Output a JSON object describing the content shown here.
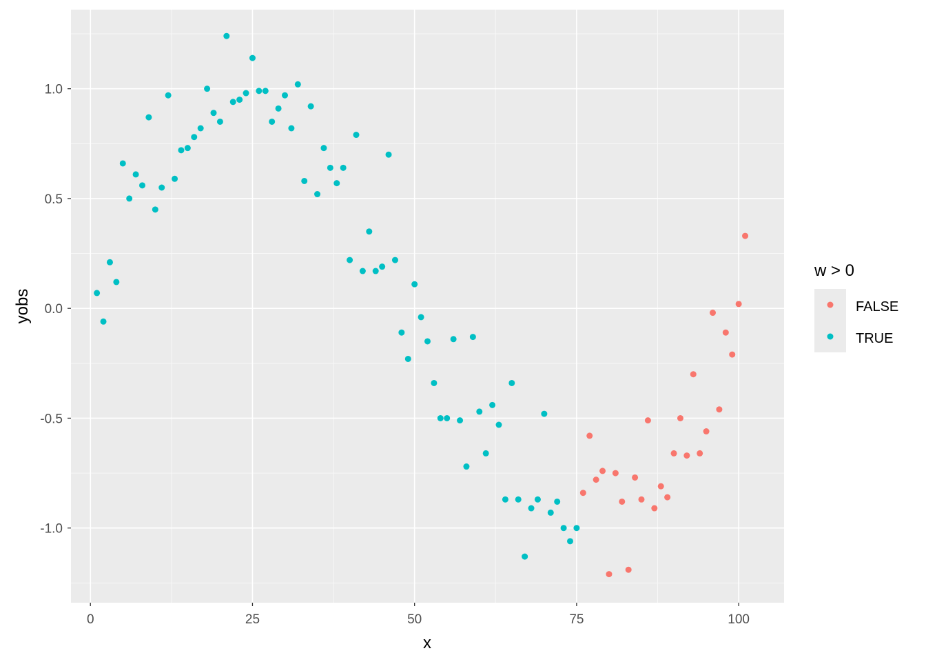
{
  "chart_data": {
    "type": "scatter",
    "xlabel": "x",
    "ylabel": "yobs",
    "xlim": [
      -3,
      107
    ],
    "ylim": [
      -1.34,
      1.36
    ],
    "x_ticks": [
      0,
      25,
      50,
      75,
      100
    ],
    "x_tick_labels": [
      "0",
      "25",
      "50",
      "75",
      "100"
    ],
    "y_ticks": [
      -1.0,
      -0.5,
      0.0,
      0.5,
      1.0
    ],
    "y_tick_labels": [
      "-1.0",
      "-0.5",
      "0.0",
      "0.5",
      "1.0"
    ],
    "grid": true,
    "legend": {
      "title": "w > 0",
      "position": "right",
      "entries": [
        {
          "label": "FALSE",
          "color": "#F8766D"
        },
        {
          "label": "TRUE",
          "color": "#00BFC4"
        }
      ]
    },
    "series": [
      {
        "name": "FALSE",
        "color": "#F8766D",
        "x": [
          76,
          77,
          78,
          79,
          80,
          81,
          82,
          83,
          84,
          85,
          86,
          87,
          88,
          89,
          90,
          91,
          92,
          93,
          94,
          95,
          96,
          97,
          98,
          99,
          100,
          101
        ],
        "y": [
          -0.84,
          -0.58,
          -0.78,
          -0.74,
          -1.21,
          -0.75,
          -0.88,
          -1.19,
          -0.77,
          -0.87,
          -0.51,
          -0.91,
          -0.81,
          -0.86,
          -0.66,
          -0.5,
          -0.67,
          -0.3,
          -0.66,
          -0.56,
          -0.02,
          -0.46,
          -0.11,
          -0.21,
          0.02,
          0.33
        ]
      },
      {
        "name": "TRUE",
        "color": "#00BFC4",
        "x": [
          1,
          2,
          3,
          4,
          5,
          6,
          7,
          8,
          9,
          10,
          11,
          12,
          13,
          14,
          15,
          16,
          17,
          18,
          19,
          20,
          21,
          22,
          23,
          24,
          25,
          26,
          27,
          28,
          29,
          30,
          31,
          32,
          33,
          34,
          35,
          36,
          37,
          38,
          39,
          40,
          41,
          42,
          43,
          44,
          45,
          46,
          47,
          48,
          49,
          50,
          51,
          52,
          53,
          54,
          55,
          56,
          57,
          58,
          59,
          60,
          61,
          62,
          63,
          64,
          65,
          66,
          67,
          68,
          69,
          70,
          71,
          72,
          73,
          74,
          75
        ],
        "y": [
          0.07,
          -0.06,
          0.21,
          0.12,
          0.66,
          0.5,
          0.61,
          0.56,
          0.87,
          0.45,
          0.55,
          0.97,
          0.59,
          0.72,
          0.73,
          0.78,
          0.82,
          1.0,
          0.89,
          0.85,
          1.24,
          0.94,
          0.95,
          0.98,
          1.14,
          0.99,
          0.99,
          0.85,
          0.91,
          0.97,
          0.82,
          1.02,
          0.58,
          0.92,
          0.52,
          0.73,
          0.64,
          0.57,
          0.64,
          0.22,
          0.79,
          0.17,
          0.35,
          0.17,
          0.19,
          0.7,
          0.22,
          -0.11,
          -0.23,
          0.11,
          -0.04,
          -0.15,
          -0.34,
          -0.5,
          -0.5,
          -0.14,
          -0.51,
          -0.72,
          -0.13,
          -0.47,
          -0.66,
          -0.44,
          -0.53,
          -0.87,
          -0.34,
          -0.87,
          -1.13,
          -0.91,
          -0.87,
          -0.48,
          -0.93,
          -0.88,
          -1.0,
          -1.06,
          -1.0
        ]
      }
    ]
  }
}
